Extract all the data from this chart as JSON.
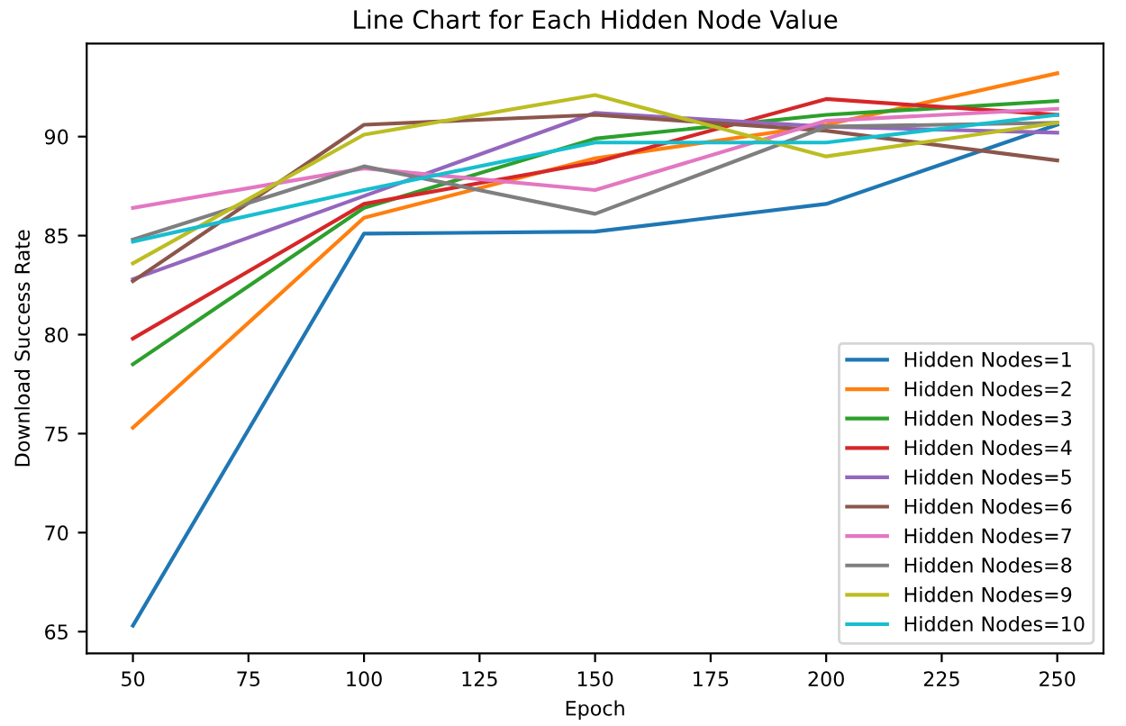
{
  "chart_data": {
    "type": "line",
    "title": "Line Chart for Each Hidden Node Value",
    "xlabel": "Epoch",
    "ylabel": "Download Success Rate",
    "x": [
      50,
      100,
      150,
      200,
      250
    ],
    "series": [
      {
        "name": "Hidden Nodes=1",
        "color": "#1f77b4",
        "values": [
          65.3,
          85.1,
          85.2,
          86.6,
          90.6
        ]
      },
      {
        "name": "Hidden Nodes=2",
        "color": "#ff7f0e",
        "values": [
          75.3,
          85.9,
          88.9,
          90.6,
          93.2
        ]
      },
      {
        "name": "Hidden Nodes=3",
        "color": "#2ca02c",
        "values": [
          78.5,
          86.4,
          89.9,
          91.1,
          91.8
        ]
      },
      {
        "name": "Hidden Nodes=4",
        "color": "#d62728",
        "values": [
          79.8,
          86.6,
          88.7,
          91.9,
          91.1
        ]
      },
      {
        "name": "Hidden Nodes=5",
        "color": "#9467bd",
        "values": [
          82.8,
          87.0,
          91.2,
          90.5,
          90.2
        ]
      },
      {
        "name": "Hidden Nodes=6",
        "color": "#8c564b",
        "values": [
          82.7,
          90.6,
          91.1,
          90.3,
          88.8
        ]
      },
      {
        "name": "Hidden Nodes=7",
        "color": "#e377c2",
        "values": [
          86.4,
          88.4,
          87.3,
          90.8,
          91.4
        ]
      },
      {
        "name": "Hidden Nodes=8",
        "color": "#7f7f7f",
        "values": [
          84.8,
          88.5,
          86.1,
          90.5,
          90.7
        ]
      },
      {
        "name": "Hidden Nodes=9",
        "color": "#bcbd22",
        "values": [
          83.6,
          90.1,
          92.1,
          89.0,
          90.7
        ]
      },
      {
        "name": "Hidden Nodes=10",
        "color": "#17becf",
        "values": [
          84.7,
          87.3,
          89.7,
          89.7,
          91.1
        ]
      }
    ],
    "xlim": [
      40,
      260
    ],
    "ylim": [
      63.9,
      94.7
    ],
    "xticks": [
      50,
      75,
      100,
      125,
      150,
      175,
      200,
      225,
      250
    ],
    "yticks": [
      65,
      70,
      75,
      80,
      85,
      90
    ],
    "legend": "lower right",
    "grid": false,
    "line_style": "solid"
  }
}
